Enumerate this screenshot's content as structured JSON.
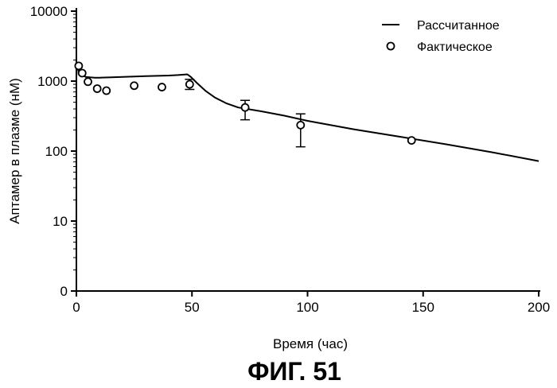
{
  "chart_data": {
    "type": "line",
    "title": "",
    "xlabel": "Время (час)",
    "ylabel": "Аптамер в плазме (нМ)",
    "xlim": [
      0,
      200
    ],
    "x_ticks": [
      0,
      50,
      100,
      150,
      200
    ],
    "x_tick_labels": [
      "0",
      "50",
      "100",
      "150",
      "200"
    ],
    "y_scale": "log",
    "y_ticks": [
      1,
      10,
      100,
      1000,
      10000
    ],
    "y_tick_labels": [
      "0",
      "10",
      "100",
      "1000",
      "10000"
    ],
    "grid": false,
    "legend_position": "top-right",
    "series": [
      {
        "name": "Рассчитанное",
        "kind": "line",
        "color": "#000000",
        "x": [
          0,
          0.3,
          1,
          2,
          4,
          6,
          8,
          10,
          15,
          20,
          30,
          40,
          44,
          48,
          49.5,
          52,
          56,
          60,
          65,
          70,
          80,
          90,
          100,
          120,
          140,
          160,
          180,
          200
        ],
        "y": [
          1150,
          1750,
          1400,
          1250,
          1150,
          1130,
          1120,
          1120,
          1130,
          1150,
          1180,
          1200,
          1220,
          1250,
          1150,
          950,
          720,
          580,
          480,
          420,
          370,
          320,
          270,
          205,
          160,
          125,
          96,
          72
        ]
      },
      {
        "name": "Фактическое",
        "kind": "scatter",
        "marker": "open-circle",
        "color": "#000000",
        "x": [
          1,
          2.5,
          5,
          9,
          13,
          25,
          37,
          49,
          73,
          97,
          145
        ],
        "y": [
          1650,
          1300,
          980,
          780,
          730,
          860,
          820,
          900,
          420,
          235,
          142
        ],
        "error_low": [
          null,
          null,
          null,
          null,
          null,
          null,
          null,
          760,
          280,
          115,
          null
        ],
        "error_high": [
          null,
          null,
          null,
          null,
          null,
          null,
          null,
          1060,
          530,
          340,
          null
        ]
      }
    ]
  },
  "caption": "ФИГ. 51"
}
